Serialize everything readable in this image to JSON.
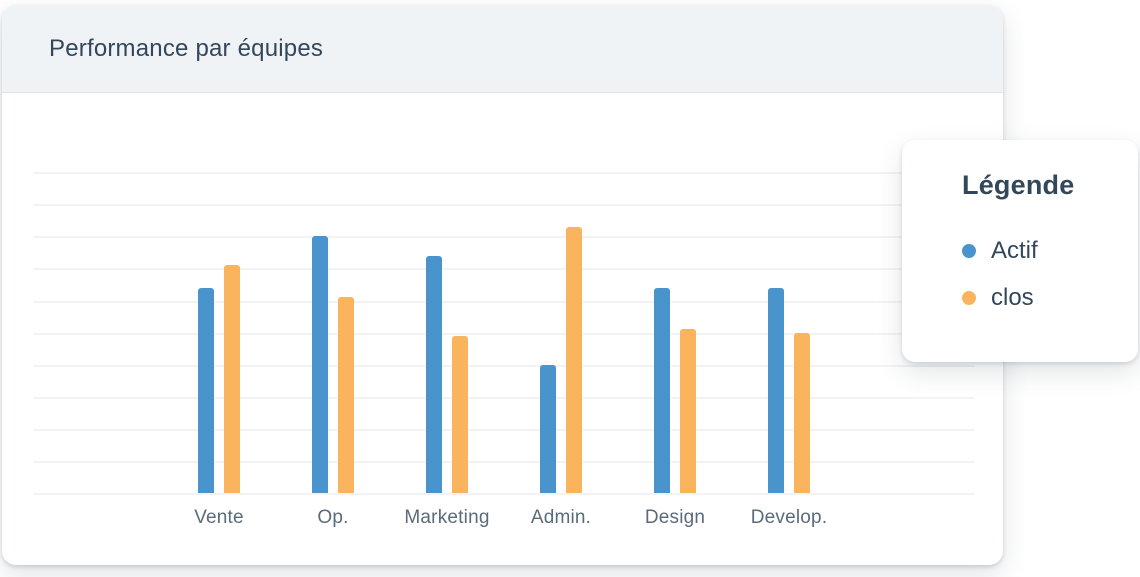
{
  "card": {
    "title": "Performance par équipes"
  },
  "legend": {
    "title": "Légende",
    "items": [
      {
        "label": "Actif",
        "color": "#4a94cd"
      },
      {
        "label": "clos",
        "color": "#fbb45e"
      }
    ]
  },
  "colors": {
    "actif_blue": "#4a94cd",
    "clos_orange": "#fbb45e",
    "header_bg": "#f0f3f6",
    "gridline": "#f1f3f5",
    "heading_text": "#33475b",
    "axis_label_text": "#5a6b7c"
  },
  "chart_data": {
    "type": "bar",
    "title": "Performance par équipes",
    "categories": [
      "Vente",
      "Op.",
      "Marketing",
      "Admin.",
      "Design",
      "Develop."
    ],
    "series": [
      {
        "name": "Actif",
        "color": "#4a94cd",
        "values": [
          64,
          80,
          74,
          40,
          64,
          64
        ]
      },
      {
        "name": "clos",
        "color": "#fbb45e",
        "values": [
          71,
          61,
          49,
          83,
          51,
          50
        ]
      }
    ],
    "xlabel": "",
    "ylabel": "",
    "ylim": [
      0,
      100
    ],
    "gridline_step": 10,
    "grid": "horizontal",
    "y_tick_labels_visible": false,
    "legend_position": "floating-top-right",
    "legend_title": "Légende"
  }
}
